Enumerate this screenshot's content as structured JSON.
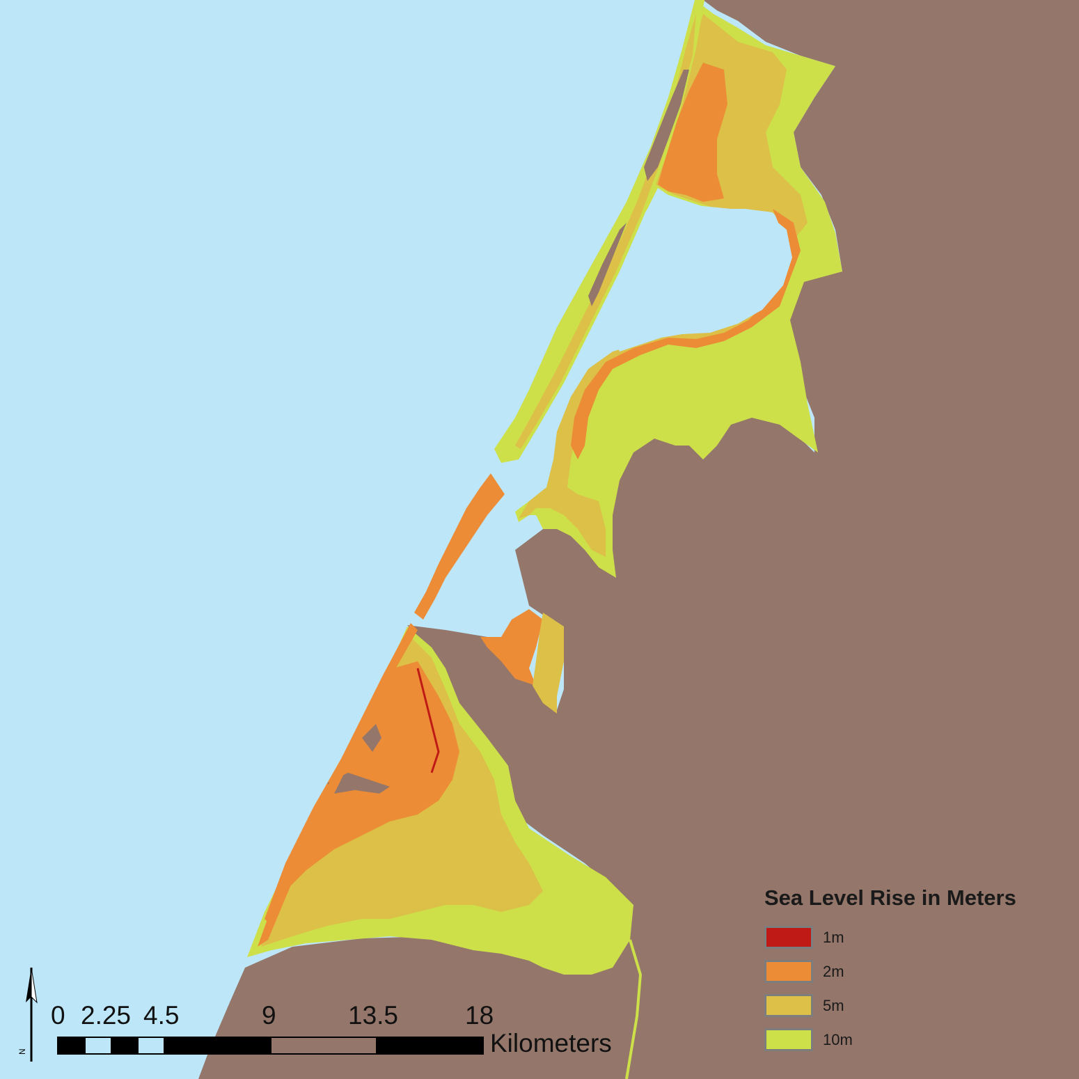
{
  "colors": {
    "water": "#bde6f9",
    "land": "#94776a",
    "rise_1m": "#c01a16",
    "rise_2m": "#ec8c36",
    "rise_5m": "#dcc048",
    "rise_10m": "#cde04a",
    "scale_dark": "#000000",
    "scale_light_a": "#bde6f9",
    "scale_light_b": "#94776a"
  },
  "legend": {
    "title": "Sea Level Rise in Meters",
    "items": [
      {
        "label": "1m",
        "color": "#c01a16"
      },
      {
        "label": "2m",
        "color": "#ec8c36"
      },
      {
        "label": "5m",
        "color": "#dcc048"
      },
      {
        "label": "10m",
        "color": "#cde04a"
      }
    ]
  },
  "scale_bar": {
    "ticks": [
      "0",
      "2.25",
      "4.5",
      "9",
      "13.5",
      "18"
    ],
    "units": "Kilometers"
  },
  "north_arrow": {
    "letter": "N",
    "icon": "north-arrow-icon"
  }
}
